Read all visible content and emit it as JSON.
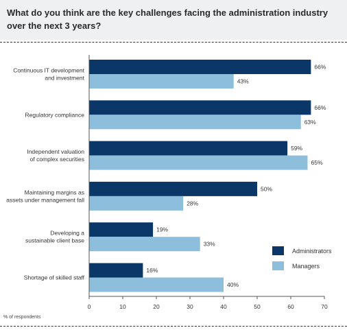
{
  "title": "What do you think are the key challenges facing the administration industry over the next 3 years?",
  "footnote": "% of respondents",
  "colors": {
    "administrators": "#0b3768",
    "managers": "#8dbfdc"
  },
  "chart_data": {
    "type": "bar",
    "orientation": "horizontal",
    "title": "What do you think are the key challenges facing the administration industry over the next 3 years?",
    "xlabel": "% of respondents",
    "ylabel": "",
    "xlim": [
      0,
      70
    ],
    "ticks": [
      0,
      10,
      20,
      30,
      40,
      50,
      60,
      70
    ],
    "categories": [
      [
        "Continuous IT development",
        "and investment"
      ],
      [
        "Regulatory compliance"
      ],
      [
        "Independent valuation",
        "of complex securities"
      ],
      [
        "Maintaining margins as",
        "assets under management fall"
      ],
      [
        "Developing a",
        "sustainable client base"
      ],
      [
        "Shortage of skilled staff"
      ]
    ],
    "series": [
      {
        "name": "Administrators",
        "values": [
          66,
          66,
          59,
          50,
          19,
          16
        ]
      },
      {
        "name": "Managers",
        "values": [
          43,
          63,
          65,
          28,
          33,
          40
        ]
      }
    ],
    "value_suffix": "%",
    "legend_position": "right",
    "grid": false
  }
}
